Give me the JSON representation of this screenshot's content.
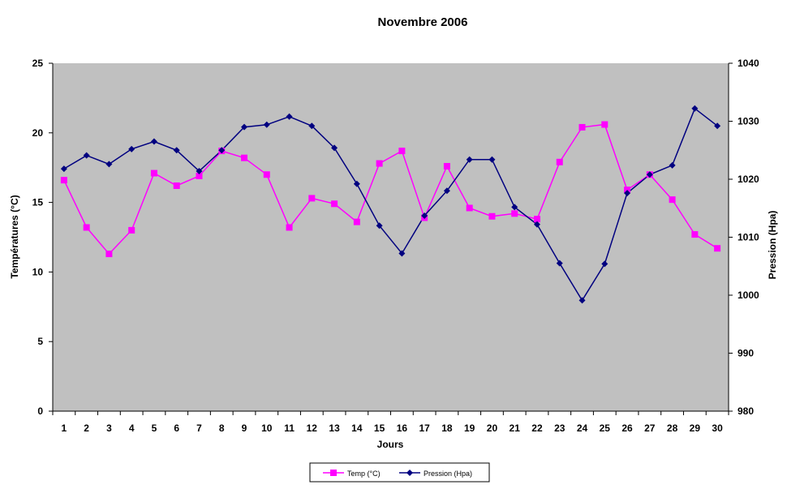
{
  "chart_data": {
    "type": "line",
    "title": "Novembre 2006",
    "xlabel": "Jours",
    "ylabel_left": "Températures (°C)",
    "ylabel_right": "Pression (Hpa)",
    "x": [
      1,
      2,
      3,
      4,
      5,
      6,
      7,
      8,
      9,
      10,
      11,
      12,
      13,
      14,
      15,
      16,
      17,
      18,
      19,
      20,
      21,
      22,
      23,
      24,
      25,
      26,
      27,
      28,
      29,
      30
    ],
    "y_left_lim": [
      0,
      25
    ],
    "y_left_ticks": [
      0,
      5,
      10,
      15,
      20,
      25
    ],
    "y_right_lim": [
      980,
      1040
    ],
    "y_right_ticks": [
      980,
      990,
      1000,
      1010,
      1020,
      1030,
      1040
    ],
    "grid": false,
    "plot_background": "#c0c0c0",
    "legend_position": "bottom",
    "series": [
      {
        "name": "Temp (°C)",
        "axis": "left",
        "color": "#ff00ff",
        "marker": "square",
        "values": [
          16.6,
          13.2,
          11.3,
          13.0,
          17.1,
          16.2,
          16.9,
          18.7,
          18.2,
          17.0,
          13.2,
          15.3,
          14.9,
          13.6,
          17.8,
          18.7,
          13.9,
          17.6,
          14.6,
          14.0,
          14.2,
          13.8,
          17.9,
          20.4,
          20.6,
          15.9,
          17.0,
          15.2,
          12.7,
          11.7
        ]
      },
      {
        "name": "Pression (Hpa)",
        "axis": "right",
        "color": "#000080",
        "marker": "diamond",
        "values": [
          1021.8,
          1024.1,
          1022.6,
          1025.2,
          1026.5,
          1025.0,
          1021.4,
          1025.0,
          1029.0,
          1029.4,
          1030.8,
          1029.2,
          1025.4,
          1019.2,
          1012.0,
          1007.2,
          1013.7,
          1018.0,
          1023.4,
          1023.4,
          1015.2,
          1012.2,
          1005.5,
          999.1,
          1005.4,
          1017.6,
          1020.8,
          1022.4,
          1032.2,
          1029.2
        ]
      }
    ]
  }
}
